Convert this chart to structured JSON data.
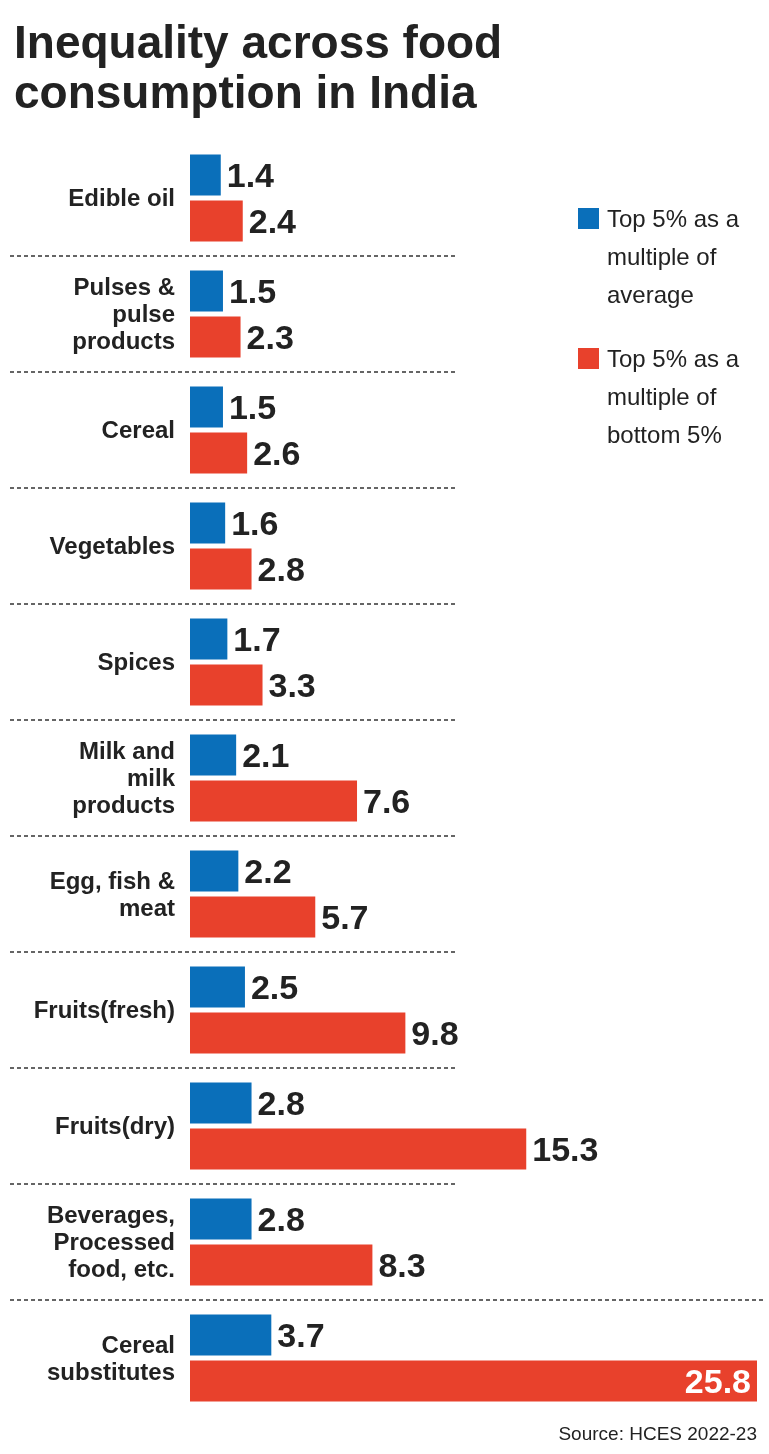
{
  "chart_data": {
    "type": "bar",
    "orientation": "horizontal",
    "title": "Inequality across food consumption in India",
    "categories": [
      "Edible oil",
      "Pulses & pulse products",
      "Cereal",
      "Vegetables",
      "Spices",
      "Milk and milk products",
      "Egg, fish & meat",
      "Fruits(fresh)",
      "Fruits(dry)",
      "Beverages, Processed food, etc.",
      "Cereal substitutes"
    ],
    "series": [
      {
        "name": "Top 5% as a multiple of average",
        "color": "#0a6fba",
        "values": [
          1.4,
          1.5,
          1.5,
          1.6,
          1.7,
          2.1,
          2.2,
          2.5,
          2.8,
          2.8,
          3.7
        ]
      },
      {
        "name": "Top 5% as a multiple of bottom 5%",
        "color": "#e8412c",
        "values": [
          2.4,
          2.3,
          2.6,
          2.8,
          3.3,
          7.6,
          5.7,
          9.8,
          15.3,
          8.3,
          25.8
        ]
      }
    ],
    "data_labels": true,
    "legend": "top right",
    "annotations": [
      "Source: HCES 2022-23"
    ]
  }
}
